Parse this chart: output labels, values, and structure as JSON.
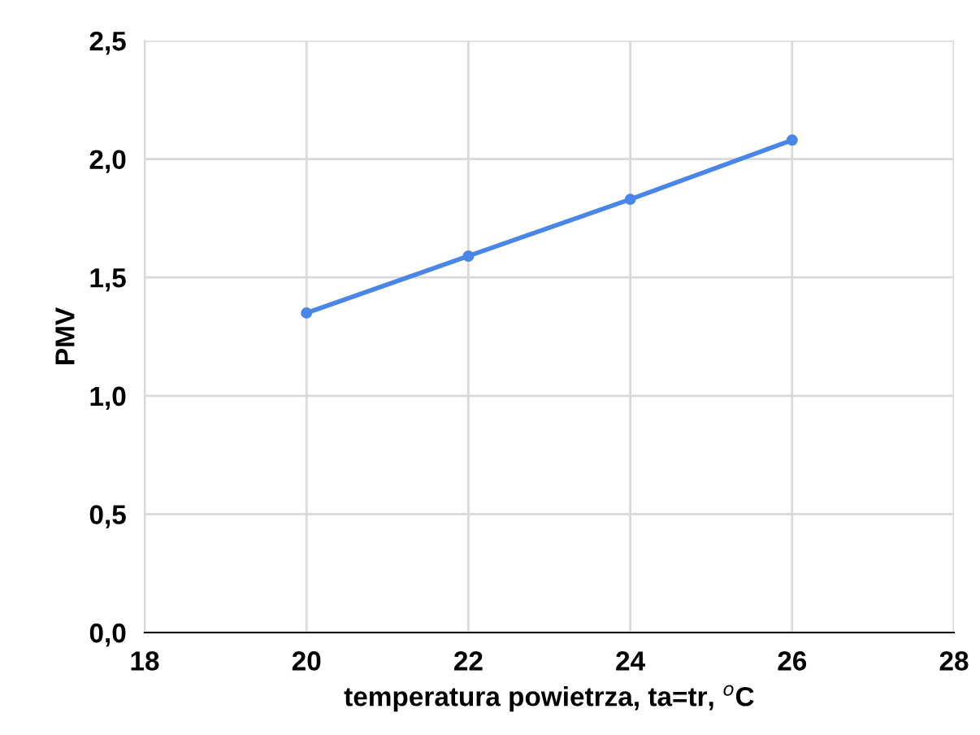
{
  "chart_data": {
    "type": "line",
    "xlabel": "temperatura powietrza, ta=tr, $^{o}$C",
    "ylabel": "PMV",
    "x": [
      20,
      22,
      24,
      26
    ],
    "series": [
      {
        "color": "#4a86e8",
        "values": [
          1.35,
          1.59,
          1.83,
          2.08
        ]
      }
    ],
    "xlim": [
      18,
      28
    ],
    "xticks": [
      18,
      20,
      22,
      24,
      26,
      28
    ],
    "ylim": [
      0,
      2.5
    ],
    "yticks": [
      {
        "value": 0,
        "label": "0,0"
      },
      {
        "value": 0.5,
        "label": "0,5"
      },
      {
        "value": 1,
        "label": "1,0"
      },
      {
        "value": 1.5,
        "label": "1,5"
      },
      {
        "value": 2,
        "label": "2,0"
      },
      {
        "value": 2.5,
        "label": "2,5"
      }
    ],
    "grid": true,
    "marker": "circle",
    "line_style": "solid"
  }
}
